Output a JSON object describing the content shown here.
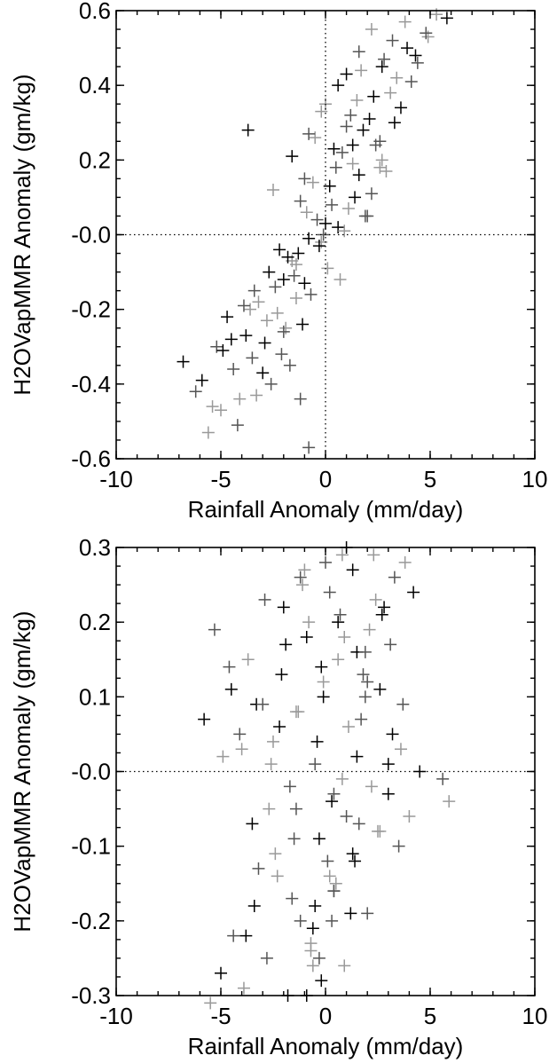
{
  "figure": {
    "background": "#ffffff",
    "marker": "plus"
  },
  "chart_data": [
    {
      "type": "scatter",
      "title": "",
      "xlabel": "Rainfall Anomaly (mm/day)",
      "ylabel": "H2OVapMMR Anomaly (gm/kg)",
      "xlim": [
        -10,
        10
      ],
      "ylim": [
        -0.6,
        0.6
      ],
      "xticks": [
        "-10",
        "-5",
        "0",
        "5",
        "10"
      ],
      "yticks": [
        "-0.6",
        "-0.4",
        "-0.2",
        "-0.0",
        "0.2",
        "0.4",
        "0.6"
      ],
      "reference_lines": {
        "x": 0,
        "y": 0,
        "style": "dotted"
      },
      "grid": false,
      "legend": "none",
      "marker_colors": [
        "#000000",
        "#555555",
        "#999999"
      ],
      "points": {
        "x": [
          -6.8,
          -6.2,
          -5.6,
          -5.9,
          -5.2,
          -5.0,
          -4.7,
          -4.4,
          -4.1,
          -3.8,
          -3.5,
          -3.2,
          -2.9,
          -2.6,
          -2.3,
          -2.0,
          -1.7,
          -1.4,
          -1.1,
          -0.8,
          -5.4,
          -4.9,
          -4.2,
          -3.6,
          -3.0,
          -2.4,
          -1.9,
          -1.3,
          -0.7,
          -0.2,
          -4.5,
          -3.9,
          -3.3,
          -2.7,
          -2.1,
          -1.6,
          -1.0,
          -0.4,
          0.1,
          0.6,
          -3.4,
          -2.8,
          -2.2,
          -1.5,
          -0.9,
          -0.3,
          0.3,
          0.9,
          1.4,
          1.9,
          -2.5,
          -1.8,
          -1.2,
          -0.6,
          0.0,
          0.5,
          1.1,
          1.6,
          2.2,
          2.7,
          -1.6,
          -1.0,
          -0.5,
          0.2,
          0.8,
          1.3,
          1.8,
          2.4,
          2.9,
          3.3,
          -0.8,
          -0.2,
          0.4,
          1.0,
          1.5,
          2.1,
          2.6,
          3.1,
          3.6,
          4.1,
          0.0,
          0.6,
          1.2,
          1.7,
          2.3,
          2.8,
          3.4,
          3.9,
          4.4,
          4.9,
          1.0,
          1.6,
          2.2,
          2.7,
          3.2,
          3.8,
          4.3,
          4.8,
          5.3,
          5.8,
          -2.0,
          -1.4,
          -0.8,
          -0.1,
          0.7,
          1.3,
          2.0,
          2.6,
          -3.7,
          -1.2
        ],
        "y": [
          -0.34,
          -0.42,
          -0.53,
          -0.39,
          -0.3,
          -0.47,
          -0.22,
          -0.36,
          -0.44,
          -0.27,
          -0.33,
          -0.18,
          -0.29,
          -0.4,
          -0.21,
          -0.12,
          -0.35,
          -0.08,
          -0.24,
          -0.57,
          -0.46,
          -0.31,
          -0.51,
          -0.2,
          -0.37,
          -0.14,
          -0.25,
          -0.05,
          -0.16,
          -0.02,
          -0.28,
          -0.19,
          -0.43,
          -0.1,
          -0.32,
          -0.07,
          -0.13,
          0.04,
          -0.09,
          0.02,
          -0.15,
          -0.23,
          -0.04,
          -0.11,
          0.06,
          -0.03,
          0.08,
          0.01,
          0.1,
          0.05,
          0.12,
          -0.06,
          0.09,
          0.14,
          0.03,
          0.18,
          0.07,
          0.16,
          0.11,
          0.2,
          0.21,
          0.15,
          0.26,
          0.13,
          0.22,
          0.19,
          0.28,
          0.24,
          0.17,
          0.3,
          0.27,
          0.33,
          0.23,
          0.29,
          0.36,
          0.31,
          0.25,
          0.38,
          0.34,
          0.41,
          0.35,
          0.4,
          0.32,
          0.44,
          0.37,
          0.47,
          0.42,
          0.5,
          0.46,
          0.53,
          0.43,
          0.49,
          0.55,
          0.45,
          0.52,
          0.57,
          0.48,
          0.54,
          0.59,
          0.58,
          -0.26,
          -0.17,
          -0.01,
          0.0,
          -0.12,
          0.24,
          0.05,
          0.18,
          0.28,
          -0.44
        ]
      }
    },
    {
      "type": "scatter",
      "title": "",
      "xlabel": "Rainfall Anomaly (mm/day)",
      "ylabel": "H2OVapMMR Anomaly (gm/kg)",
      "xlim": [
        -10,
        10
      ],
      "ylim": [
        -0.3,
        0.3
      ],
      "xticks": [
        "-10",
        "-5",
        "0",
        "5",
        "10"
      ],
      "yticks": [
        "-0.3",
        "-0.2",
        "-0.1",
        "-0.0",
        "0.1",
        "0.2",
        "0.3"
      ],
      "reference_lines": {
        "y": 0,
        "style": "dotted"
      },
      "grid": false,
      "legend": "none",
      "marker_colors": [
        "#000000",
        "#555555",
        "#999999"
      ],
      "points": {
        "x": [
          -5.8,
          -5.3,
          -4.9,
          -4.5,
          -4.1,
          -3.7,
          -3.3,
          -2.9,
          -2.5,
          -2.1,
          -1.7,
          -1.3,
          -0.9,
          -0.5,
          -0.1,
          0.3,
          0.7,
          1.1,
          1.5,
          1.9,
          -5.5,
          -5.0,
          -4.4,
          -3.9,
          -3.4,
          -2.8,
          -2.3,
          -1.8,
          -1.2,
          -0.7,
          -0.2,
          0.4,
          0.9,
          1.4,
          2.0,
          2.5,
          3.0,
          3.5,
          4.0,
          4.5,
          -4.6,
          -4.0,
          -3.5,
          -3.0,
          -2.4,
          -1.9,
          -1.4,
          -0.8,
          -0.3,
          0.2,
          0.8,
          1.3,
          1.8,
          2.3,
          2.8,
          3.3,
          3.8,
          4.2,
          -3.2,
          -2.7,
          -2.2,
          -1.6,
          -1.1,
          -0.6,
          0.0,
          0.5,
          1.0,
          1.6,
          2.1,
          2.6,
          3.1,
          3.6,
          -2.0,
          -1.5,
          -1.0,
          -0.4,
          0.1,
          0.6,
          1.2,
          1.7,
          2.2,
          2.7,
          -1.2,
          -0.7,
          -0.1,
          0.4,
          0.9,
          1.5,
          2.0,
          2.6,
          3.2,
          3.7,
          -0.6,
          -0.2,
          0.3,
          0.8,
          1.3,
          1.9,
          2.4,
          3.0,
          5.6,
          5.9,
          -0.9,
          -0.3,
          0.2,
          0.6,
          1.0,
          -1.4,
          -0.5,
          0.4,
          -2.6,
          -3.8
        ],
        "y": [
          0.07,
          0.19,
          0.02,
          0.11,
          0.05,
          0.15,
          0.09,
          0.23,
          0.04,
          0.13,
          -0.02,
          0.08,
          0.18,
          0.01,
          0.12,
          -0.04,
          0.21,
          0.06,
          0.16,
          0.1,
          -0.31,
          -0.27,
          -0.22,
          -0.29,
          -0.18,
          -0.25,
          -0.14,
          -0.3,
          -0.2,
          -0.24,
          -0.28,
          -0.16,
          -0.26,
          -0.12,
          -0.19,
          -0.08,
          -0.03,
          -0.1,
          -0.06,
          0.0,
          0.14,
          0.03,
          -0.07,
          0.09,
          -0.11,
          0.17,
          -0.05,
          0.2,
          -0.09,
          0.24,
          -0.01,
          0.27,
          0.13,
          0.29,
          0.22,
          0.26,
          0.28,
          0.24,
          -0.13,
          -0.05,
          0.06,
          -0.17,
          0.25,
          -0.21,
          0.28,
          -0.15,
          0.3,
          -0.07,
          0.19,
          0.11,
          0.17,
          0.03,
          0.22,
          -0.09,
          0.27,
          0.04,
          -0.12,
          0.15,
          -0.19,
          0.07,
          -0.02,
          0.21,
          0.26,
          -0.23,
          0.1,
          -0.16,
          0.18,
          0.02,
          0.12,
          -0.08,
          0.05,
          0.09,
          -0.26,
          0.14,
          -0.2,
          0.29,
          -0.11,
          0.16,
          0.23,
          0.01,
          -0.01,
          -0.04,
          -0.3,
          -0.25,
          -0.14,
          0.2,
          -0.06,
          0.08,
          -0.18,
          -0.03,
          0.01,
          -0.22
        ]
      }
    }
  ]
}
